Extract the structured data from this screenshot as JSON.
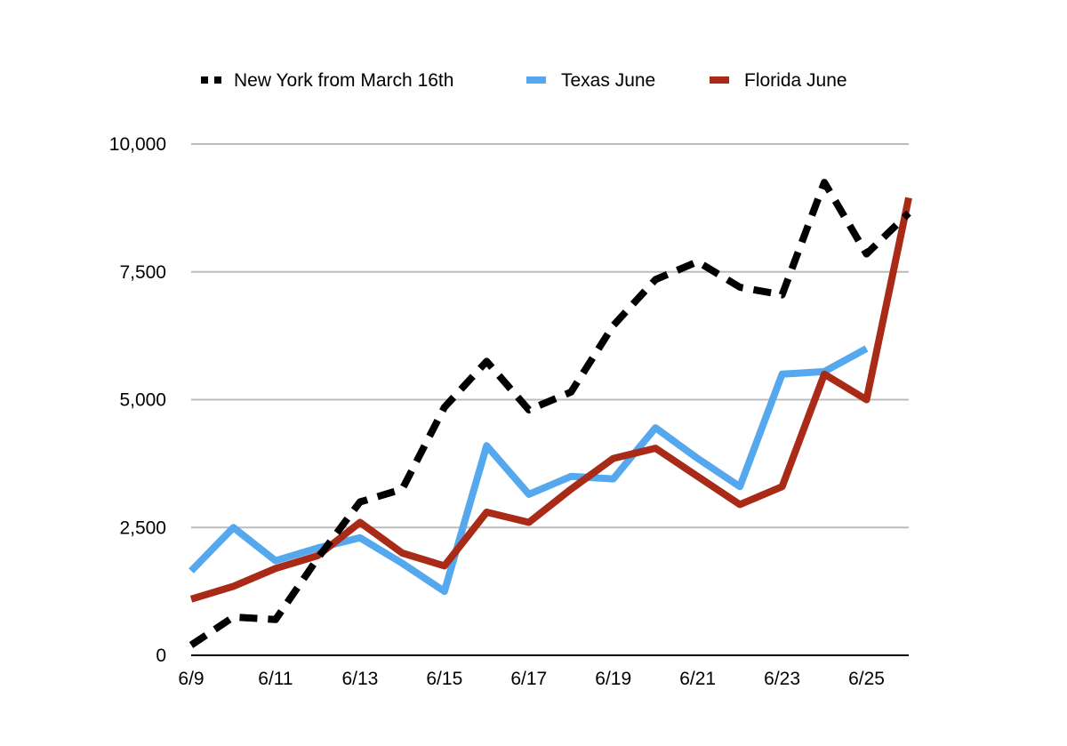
{
  "chart_data": {
    "type": "line",
    "title": "",
    "xlabel": "",
    "ylabel": "",
    "x": [
      "6/9",
      "6/10",
      "6/11",
      "6/12",
      "6/13",
      "6/14",
      "6/15",
      "6/16",
      "6/17",
      "6/18",
      "6/19",
      "6/20",
      "6/21",
      "6/22",
      "6/23",
      "6/24",
      "6/25",
      "6/26"
    ],
    "x_tick_labels": [
      "6/9",
      "6/11",
      "6/13",
      "6/15",
      "6/17",
      "6/19",
      "6/21",
      "6/23",
      "6/25"
    ],
    "y_tick_labels": [
      "0",
      "2,500",
      "5,000",
      "7,500",
      "10,000"
    ],
    "y_ticks": [
      0,
      2500,
      5000,
      7500,
      10000
    ],
    "ylim": [
      0,
      10000
    ],
    "grid": true,
    "legend_position": "top",
    "series": [
      {
        "name": "New York from March 16th",
        "color": "#000000",
        "style": "dashed",
        "values": [
          200,
          750,
          700,
          1900,
          3000,
          3250,
          4850,
          5750,
          4800,
          5150,
          6450,
          7350,
          7700,
          7200,
          7050,
          9250,
          7850,
          8650
        ]
      },
      {
        "name": "Texas June",
        "color": "#56a8ee",
        "style": "solid",
        "values": [
          1650,
          2500,
          1850,
          2100,
          2300,
          1800,
          1250,
          4100,
          3150,
          3500,
          3450,
          4450,
          3850,
          3300,
          5500,
          5550,
          6000,
          null
        ]
      },
      {
        "name": "Florida June",
        "color": "#a92a17",
        "style": "solid",
        "values": [
          1100,
          1350,
          1700,
          1950,
          2600,
          2000,
          1750,
          2800,
          2600,
          3250,
          3850,
          4050,
          3500,
          2950,
          3300,
          5500,
          5000,
          8950
        ]
      }
    ]
  }
}
